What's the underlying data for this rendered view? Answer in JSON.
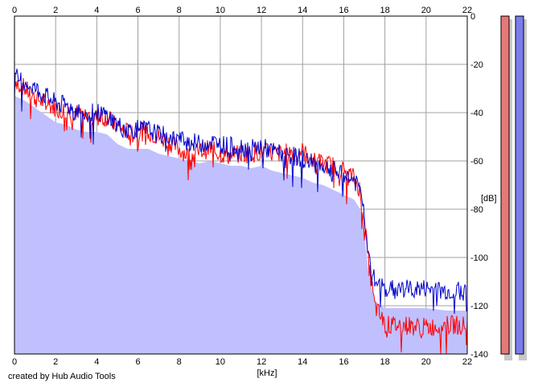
{
  "chart_data": {
    "type": "line",
    "title": "",
    "xlabel": "[kHz]",
    "ylabel": "[dB]",
    "xlim": [
      0,
      22
    ],
    "ylim": [
      -140,
      0
    ],
    "x_ticks": [
      0,
      2,
      4,
      6,
      8,
      10,
      12,
      14,
      16,
      18,
      20,
      22
    ],
    "y_ticks": [
      0,
      -20,
      -40,
      -60,
      -80,
      -100,
      -120,
      -140
    ],
    "grid": true,
    "colors": {
      "blue": "#0000cc",
      "red": "#ff0000",
      "fill": "#c0c0ff",
      "meter_red": "#e87878",
      "meter_blue": "#7c7cf0"
    },
    "series": [
      {
        "x": [
          0,
          0.5,
          1,
          1.5,
          2,
          2.5,
          3,
          3.5,
          4,
          4.5,
          5,
          5.5,
          6,
          6.5,
          7,
          7.5,
          8,
          8.5,
          9,
          9.5,
          10,
          10.5,
          11,
          11.5,
          12,
          12.5,
          13,
          13.5,
          14,
          14.5,
          15,
          15.5,
          16,
          16.5,
          16.8,
          17,
          17.2,
          17.5,
          18,
          19,
          20,
          21,
          22
        ],
        "values": [
          -25,
          -27,
          -30,
          -33,
          -36,
          -37,
          -39,
          -40,
          -40,
          -41,
          -45,
          -47,
          -47,
          -47,
          -49,
          -50,
          -51,
          -52,
          -53,
          -52,
          -53,
          -54,
          -54,
          -55,
          -54,
          -56,
          -57,
          -58,
          -59,
          -61,
          -62,
          -64,
          -66,
          -68,
          -72,
          -82,
          -98,
          -110,
          -113,
          -113,
          -113,
          -114,
          -114
        ]
      },
      {
        "x": [
          0,
          0.5,
          1,
          1.5,
          2,
          2.5,
          3,
          3.5,
          4,
          4.5,
          5,
          5.5,
          6,
          6.5,
          7,
          7.5,
          8,
          8.5,
          9,
          9.5,
          10,
          10.5,
          11,
          11.5,
          12,
          12.5,
          13,
          13.5,
          14,
          14.5,
          15,
          15.5,
          16,
          16.5,
          16.8,
          17,
          17.2,
          17.5,
          18,
          19,
          20,
          21,
          22
        ],
        "values": [
          -26,
          -30,
          -34,
          -36,
          -38,
          -39,
          -40,
          -41,
          -42,
          -42,
          -46,
          -48,
          -48,
          -48,
          -50,
          -52,
          -55,
          -58,
          -56,
          -55,
          -57,
          -58,
          -57,
          -57,
          -56,
          -57,
          -57,
          -56,
          -56,
          -60,
          -61,
          -62,
          -64,
          -67,
          -72,
          -84,
          -102,
          -120,
          -128,
          -128,
          -129,
          -128,
          -128
        ]
      }
    ]
  },
  "credit": "created by Hub Audio Tools"
}
